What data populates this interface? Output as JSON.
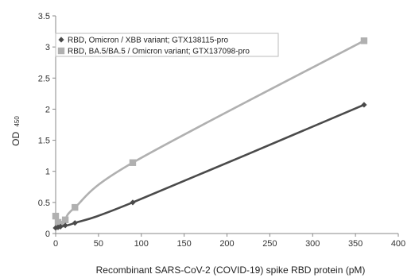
{
  "chart_data": {
    "type": "line",
    "xlabel": "Recombinant SARS-CoV-2 (COVID-19) spike RBD protein (pM)",
    "ylabel": "OD",
    "ylabel_subscript": "450",
    "xlim": [
      0,
      400
    ],
    "ylim": [
      0,
      3.5
    ],
    "x_ticks": [
      "0",
      "50",
      "100",
      "150",
      "200",
      "250",
      "300",
      "350",
      "400"
    ],
    "y_ticks": [
      "0",
      "0.5",
      "1",
      "1.5",
      "2",
      "2.5",
      "3",
      "3.5"
    ],
    "grid": false,
    "legend_position": "top-left",
    "series": [
      {
        "name": "RBD, Omicron / XBB variant; GTX138115-pro",
        "marker": "diamond",
        "color": "#4a4a4a",
        "x": [
          0,
          2.8,
          5.6,
          11.25,
          22.5,
          90,
          360
        ],
        "y": [
          0.09,
          0.1,
          0.11,
          0.13,
          0.17,
          0.5,
          2.07
        ]
      },
      {
        "name": "RBD, BA.5/BA.5 / Omicron variant; GTX137098-pro",
        "marker": "square",
        "color": "#b0b0b0",
        "x": [
          0,
          2.8,
          5.6,
          11.25,
          22.5,
          90,
          360
        ],
        "y": [
          0.28,
          0.18,
          0.15,
          0.22,
          0.42,
          1.14,
          3.1
        ]
      }
    ]
  }
}
